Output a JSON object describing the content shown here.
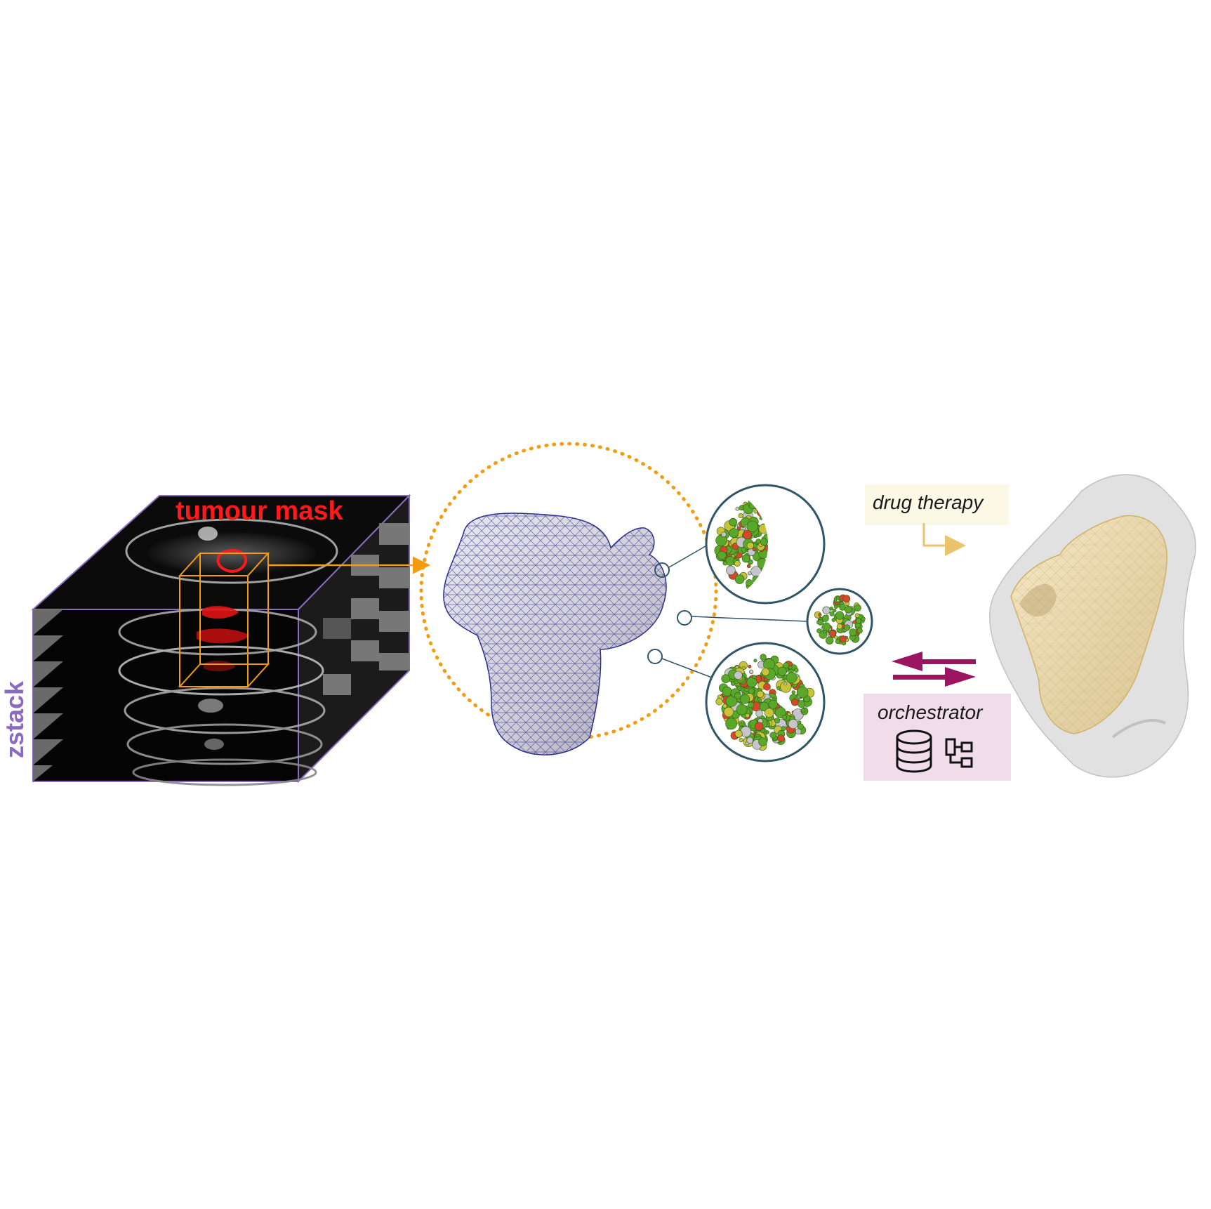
{
  "labels": {
    "tumour_mask": "tumour mask",
    "zstack": "zstack",
    "drug_therapy": "drug therapy",
    "orchestrator": "orchestrator"
  },
  "colors": {
    "tumour_mask": "#ff1a1a",
    "zstack_frame": "#8a6bbf",
    "zstack_label": "#8a6bbf",
    "roi_box": "#f39c12",
    "dotted_circle": "#f39c12",
    "mesh_wire": "#2b2f8f",
    "mesh_fill": "#d9d6e0",
    "zoom_circle": "#2f5566",
    "cells_green": "#5aa82a",
    "cells_gray": "#c8c4cf",
    "cells_red": "#d9472b",
    "cells_yellow": "#c9c23a",
    "drug_box_bg": "#fcf8e6",
    "drug_arrow": "#e9c46a",
    "exchange_arrows": "#9b1561",
    "orchestrator_bg": "#f1dcea",
    "result_outer": "#d7d7d9",
    "result_inner": "#f1dfb7"
  },
  "icons": [
    "database-icon",
    "flowchart-icon"
  ]
}
